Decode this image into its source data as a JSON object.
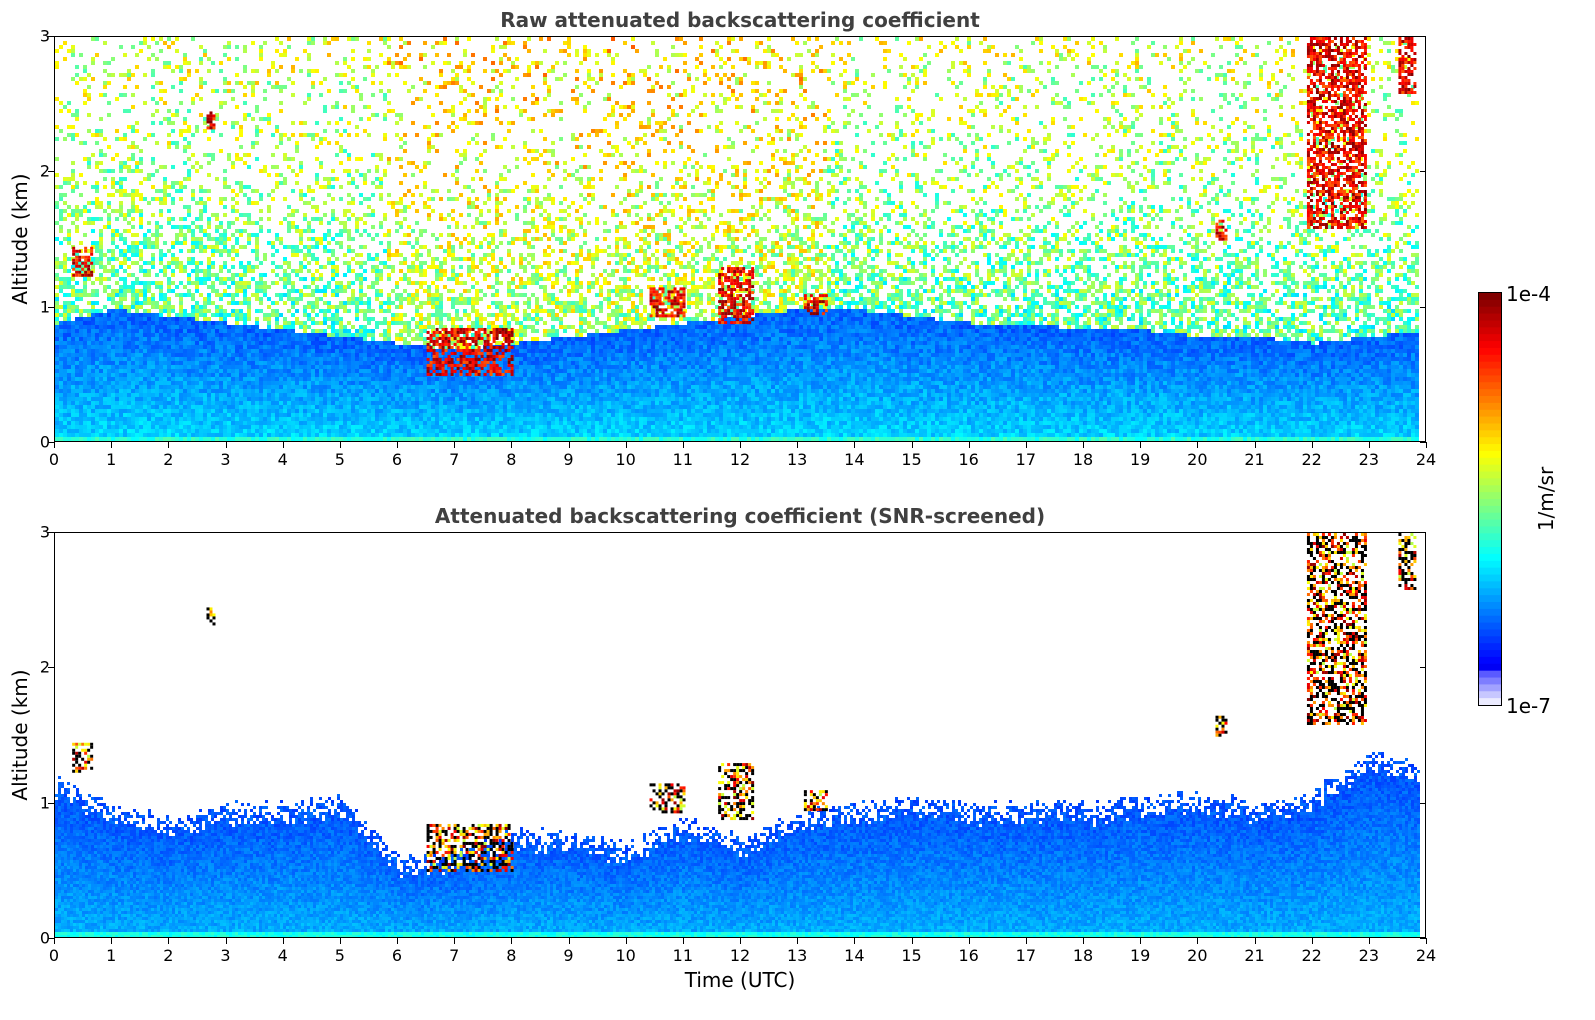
{
  "chart_data": [
    {
      "type": "heatmap",
      "title": "Raw attenuated backscattering coefficient",
      "xlabel": "",
      "ylabel": "Altitude (km)",
      "xlim": [
        0,
        24
      ],
      "ylim": [
        0,
        3
      ],
      "xticks": [
        "0",
        "1",
        "2",
        "3",
        "4",
        "5",
        "6",
        "7",
        "8",
        "9",
        "10",
        "11",
        "12",
        "13",
        "14",
        "15",
        "16",
        "17",
        "18",
        "19",
        "20",
        "21",
        "22",
        "23",
        "24"
      ],
      "yticks": [
        "0",
        "1",
        "2",
        "3"
      ],
      "colorscale": "jet",
      "boundary_layer_top_km": [
        0.9,
        1.0,
        0.95,
        0.9,
        0.85,
        0.8,
        0.75,
        0.7,
        0.75,
        0.8,
        0.85,
        0.9,
        0.95,
        1.0,
        1.0,
        0.95,
        0.9,
        0.9,
        0.85,
        0.85,
        0.8,
        0.8,
        0.75,
        0.8,
        0.85
      ],
      "cloud_features": [
        {
          "t_start": 0.3,
          "t_end": 0.65,
          "z_bottom": 1.25,
          "z_top": 1.45
        },
        {
          "t_start": 2.65,
          "t_end": 2.8,
          "z_bottom": 2.32,
          "z_top": 2.45
        },
        {
          "t_start": 6.5,
          "t_end": 8.0,
          "z_bottom": 0.5,
          "z_top": 0.85
        },
        {
          "t_start": 10.4,
          "t_end": 11.0,
          "z_bottom": 0.95,
          "z_top": 1.15
        },
        {
          "t_start": 11.6,
          "t_end": 12.2,
          "z_bottom": 0.9,
          "z_top": 1.3
        },
        {
          "t_start": 13.1,
          "t_end": 13.5,
          "z_bottom": 0.95,
          "z_top": 1.1
        },
        {
          "t_start": 20.3,
          "t_end": 20.5,
          "z_bottom": 1.5,
          "z_top": 1.65
        },
        {
          "t_start": 21.9,
          "t_end": 22.9,
          "z_bottom": 1.6,
          "z_top": 3.0
        },
        {
          "t_start": 23.5,
          "t_end": 23.8,
          "z_bottom": 2.6,
          "z_top": 3.0
        }
      ]
    },
    {
      "type": "heatmap",
      "title": "Attenuated backscattering coefficient (SNR-screened)",
      "xlabel": "Time (UTC)",
      "ylabel": "Altitude (km)",
      "xlim": [
        0,
        24
      ],
      "ylim": [
        0,
        3
      ],
      "xticks": [
        "0",
        "1",
        "2",
        "3",
        "4",
        "5",
        "6",
        "7",
        "8",
        "9",
        "10",
        "11",
        "12",
        "13",
        "14",
        "15",
        "16",
        "17",
        "18",
        "19",
        "20",
        "21",
        "22",
        "23",
        "24"
      ],
      "yticks": [
        "0",
        "1",
        "2",
        "3"
      ],
      "colorscale": "jet",
      "screened_layer_top_km": [
        1.2,
        1.0,
        0.9,
        1.0,
        1.0,
        1.05,
        0.6,
        0.65,
        0.8,
        0.8,
        0.7,
        0.9,
        0.75,
        0.95,
        1.0,
        1.05,
        1.0,
        1.0,
        1.0,
        1.05,
        1.1,
        1.0,
        1.1,
        1.4,
        1.3
      ]
    }
  ],
  "colorbar": {
    "max_label": "1e-4",
    "min_label": "1e-7",
    "unit": "1/m/sr"
  }
}
